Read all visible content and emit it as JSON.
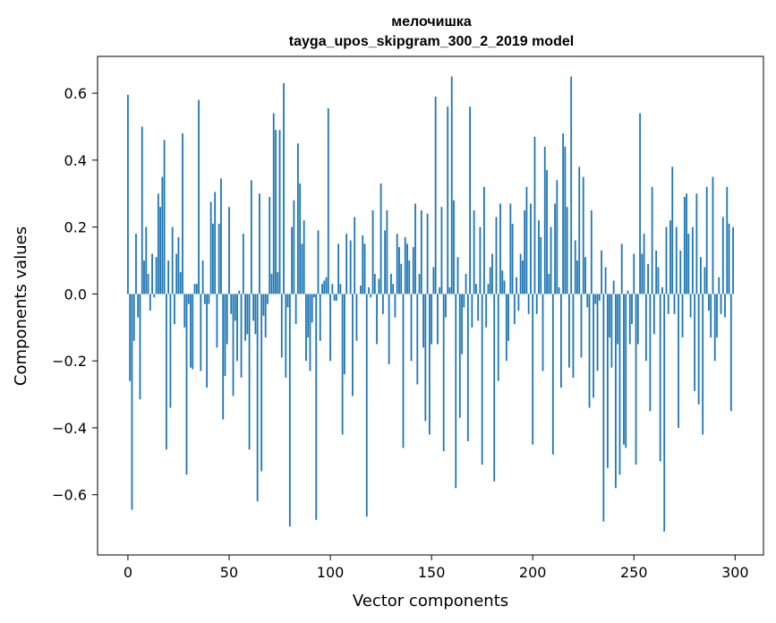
{
  "chart_data": {
    "type": "bar",
    "title": "мелочишка",
    "subtitle": "tayga_upos_skipgram_300_2_2019 model",
    "xlabel": "Vector components",
    "ylabel": "Components values",
    "xlim": [
      -15,
      314
    ],
    "ylim": [
      -0.78,
      0.71
    ],
    "x_ticks": [
      0,
      50,
      100,
      150,
      200,
      250,
      300
    ],
    "y_ticks": [
      -0.6,
      -0.4,
      -0.2,
      0.0,
      0.2,
      0.4,
      0.6
    ],
    "y_tick_labels": [
      "−0.6",
      "−0.4",
      "−0.2",
      "0.0",
      "0.2",
      "0.4",
      "0.6"
    ],
    "x_tick_labels": [
      "0",
      "50",
      "100",
      "150",
      "200",
      "250",
      "300"
    ],
    "bar_color": "#1f77b4",
    "grid": false,
    "x": "indices 0..299",
    "values": [
      0.595,
      -0.26,
      -0.645,
      -0.14,
      0.18,
      -0.07,
      -0.315,
      0.5,
      0.1,
      0.2,
      0.06,
      -0.05,
      0.12,
      -0.01,
      0.11,
      0.3,
      0.26,
      0.35,
      0.46,
      -0.465,
      0.1,
      -0.34,
      0.2,
      -0.09,
      0.12,
      0.17,
      0.065,
      0.48,
      -0.1,
      -0.54,
      -0.03,
      -0.22,
      -0.225,
      0.03,
      0.03,
      0.58,
      -0.23,
      0.1,
      -0.03,
      -0.28,
      -0.03,
      0.275,
      0.21,
      0.305,
      -0.16,
      0.21,
      0.345,
      -0.375,
      -0.245,
      -0.15,
      0.26,
      -0.06,
      -0.305,
      -0.08,
      -0.2,
      0.01,
      -0.25,
      0.18,
      -0.14,
      -0.12,
      -0.465,
      0.34,
      -0.08,
      -0.12,
      -0.62,
      0.3,
      -0.53,
      -0.065,
      -0.13,
      -0.03,
      0.29,
      0.06,
      0.54,
      0.49,
      0.065,
      0.49,
      -0.19,
      0.63,
      -0.25,
      -0.04,
      -0.695,
      0.2,
      0.28,
      -0.09,
      0.45,
      0.33,
      0.15,
      0.22,
      -0.2,
      -0.13,
      -0.23,
      -0.085,
      -0.01,
      -0.675,
      0.19,
      -0.14,
      0.03,
      0.04,
      0.05,
      0.555,
      -0.2,
      0.03,
      -0.02,
      -0.02,
      0.15,
      0.03,
      -0.42,
      -0.24,
      0.18,
      0.0,
      0.16,
      -0.305,
      0.23,
      -0.14,
      0.0,
      0.025,
      0.175,
      0.15,
      -0.665,
      0.02,
      -0.01,
      0.25,
      0.06,
      -0.15,
      0.045,
      0.33,
      -0.06,
      0.19,
      0.25,
      -0.21,
      0.06,
      0.03,
      -0.07,
      0.18,
      0.14,
      0.09,
      -0.46,
      0.17,
      0.15,
      0.1,
      -0.2,
      0.14,
      0.27,
      -0.27,
      0.06,
      0.25,
      -0.16,
      -0.38,
      0.24,
      -0.42,
      -0.15,
      0.08,
      0.59,
      -0.15,
      0.02,
      0.26,
      -0.47,
      -0.07,
      0.56,
      0.02,
      0.65,
      0.28,
      -0.58,
      0.11,
      -0.37,
      -0.18,
      -0.04,
      0.06,
      -0.44,
      0.56,
      -0.1,
      0.25,
      0.03,
      -0.08,
      0.2,
      -0.51,
      0.32,
      -0.1,
      0.03,
      0.08,
      0.12,
      -0.56,
      0.23,
      -0.26,
      0.27,
      0.07,
      0.04,
      -0.2,
      -0.14,
      0.27,
      0.21,
      -0.09,
      0.05,
      -0.05,
      0.12,
      0.1,
      0.25,
      0.32,
      -0.06,
      0.27,
      -0.45,
      0.47,
      -0.06,
      0.22,
      0.17,
      -0.23,
      0.44,
      0.37,
      0.06,
      0.2,
      -0.48,
      0.27,
      0.34,
      0.02,
      -0.28,
      0.48,
      0.44,
      0.26,
      -0.22,
      0.65,
      -0.25,
      0.16,
      0.1,
      0.38,
      -0.19,
      0.35,
      0.11,
      -0.04,
      -0.34,
      0.25,
      -0.31,
      -0.03,
      -0.23,
      -0.02,
      0.13,
      -0.68,
      0.08,
      -0.52,
      -0.13,
      -0.22,
      0.04,
      -0.58,
      -0.15,
      -0.54,
      0.15,
      -0.45,
      -0.46,
      0.01,
      -0.15,
      -0.09,
      0.12,
      -0.51,
      -0.15,
      0.54,
      0.12,
      0.18,
      -0.2,
      0.09,
      -0.35,
      0.32,
      -0.12,
      0.13,
      0.08,
      -0.5,
      0.02,
      -0.71,
      0.2,
      -0.06,
      0.22,
      0.38,
      -0.06,
      0.2,
      -0.4,
      0.13,
      -0.13,
      0.29,
      0.3,
      0.18,
      -0.07,
      0.2,
      -0.29,
      0.3,
      -0.33,
      0.11,
      -0.42,
      0.08,
      0.32,
      -0.05,
      -0.13,
      0.35,
      -0.2,
      -0.13,
      0.05,
      -0.06,
      0.23,
      -0.07,
      0.32,
      0.21,
      -0.35,
      0.2
    ]
  }
}
